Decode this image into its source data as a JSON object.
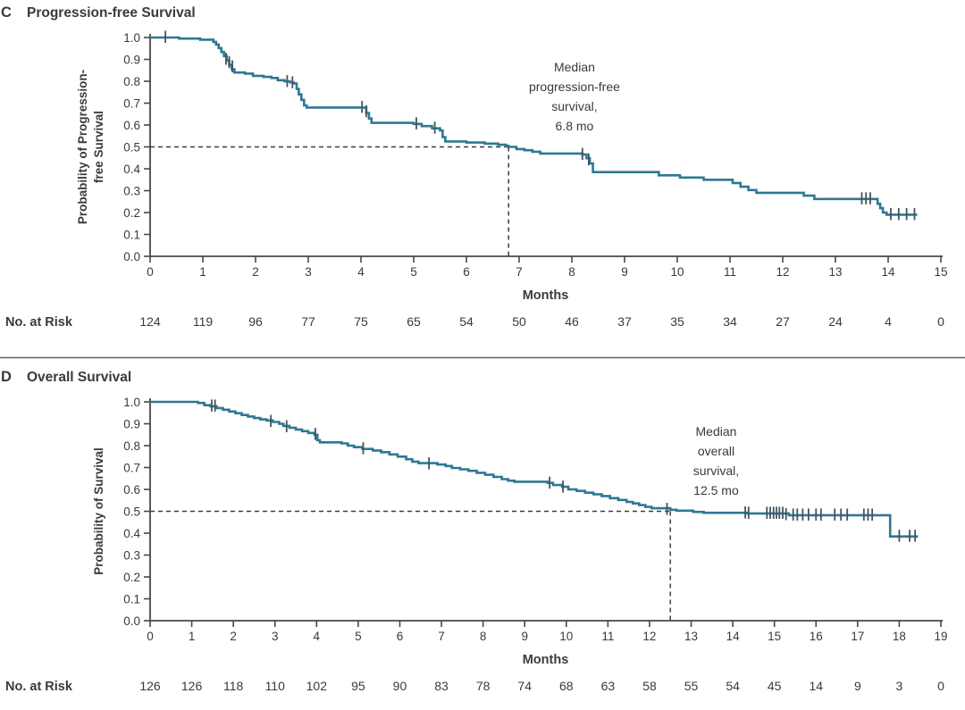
{
  "colors": {
    "curve": "#2e7893",
    "censor": "#44545c",
    "axis": "#474747",
    "text": "#3a3a3a",
    "dashed": "#3d3d3d",
    "divider": "#5f5f5f",
    "background": "#ffffff"
  },
  "chart_data": [
    {
      "type": "line",
      "panel_label": "C",
      "title": "Progression-free Survival",
      "ylabel_lines": [
        "Probability of Progression-",
        "free Survival"
      ],
      "xlabel": "Months",
      "ylim": [
        0,
        1
      ],
      "xlim": [
        0,
        15
      ],
      "yticks": [
        "1.0",
        "0.9",
        "0.8",
        "0.7",
        "0.6",
        "0.5",
        "0.4",
        "0.3",
        "0.2",
        "0.1",
        "0.0"
      ],
      "xticks": [
        "0",
        "1",
        "2",
        "3",
        "4",
        "5",
        "6",
        "7",
        "8",
        "9",
        "10",
        "11",
        "12",
        "13",
        "14",
        "15"
      ],
      "grid": false,
      "median": {
        "x": 6.8,
        "y": 0.5
      },
      "annotation": {
        "lines": [
          "Median",
          "progression-free",
          "survival,",
          "6.8 mo"
        ],
        "anchor_x": 8.05,
        "anchor_y": 0.845,
        "line_step": 0.09
      },
      "steps": [
        [
          0,
          1
        ],
        [
          0.55,
          0.995
        ],
        [
          0.95,
          0.99
        ],
        [
          1.2,
          0.98
        ],
        [
          1.25,
          0.968
        ],
        [
          1.3,
          0.952
        ],
        [
          1.35,
          0.934
        ],
        [
          1.4,
          0.915
        ],
        [
          1.45,
          0.895
        ],
        [
          1.5,
          0.875
        ],
        [
          1.55,
          0.855
        ],
        [
          1.6,
          0.84
        ],
        [
          1.8,
          0.835
        ],
        [
          1.95,
          0.825
        ],
        [
          2.15,
          0.82
        ],
        [
          2.3,
          0.815
        ],
        [
          2.42,
          0.805
        ],
        [
          2.55,
          0.8
        ],
        [
          2.65,
          0.795
        ],
        [
          2.72,
          0.79
        ],
        [
          2.78,
          0.765
        ],
        [
          2.82,
          0.74
        ],
        [
          2.87,
          0.715
        ],
        [
          2.92,
          0.69
        ],
        [
          2.97,
          0.68
        ],
        [
          4.05,
          0.68
        ],
        [
          4.1,
          0.655
        ],
        [
          4.15,
          0.63
        ],
        [
          4.2,
          0.61
        ],
        [
          5.0,
          0.605
        ],
        [
          5.15,
          0.595
        ],
        [
          5.35,
          0.585
        ],
        [
          5.5,
          0.575
        ],
        [
          5.55,
          0.545
        ],
        [
          5.6,
          0.525
        ],
        [
          6.0,
          0.52
        ],
        [
          6.35,
          0.515
        ],
        [
          6.6,
          0.51
        ],
        [
          6.75,
          0.505
        ],
        [
          6.8,
          0.5
        ],
        [
          6.95,
          0.49
        ],
        [
          7.1,
          0.485
        ],
        [
          7.25,
          0.478
        ],
        [
          7.4,
          0.47
        ],
        [
          8.2,
          0.465
        ],
        [
          8.28,
          0.448
        ],
        [
          8.34,
          0.425
        ],
        [
          8.4,
          0.385
        ],
        [
          9.65,
          0.37
        ],
        [
          10.05,
          0.36
        ],
        [
          10.5,
          0.35
        ],
        [
          11.05,
          0.335
        ],
        [
          11.2,
          0.318
        ],
        [
          11.35,
          0.303
        ],
        [
          11.5,
          0.29
        ],
        [
          12.4,
          0.277
        ],
        [
          12.6,
          0.262
        ],
        [
          13.75,
          0.262
        ],
        [
          13.8,
          0.24
        ],
        [
          13.85,
          0.22
        ],
        [
          13.9,
          0.2
        ],
        [
          13.97,
          0.19
        ],
        [
          14.55,
          0.19
        ]
      ],
      "censors": [
        [
          0.29,
          1
        ],
        [
          1.44,
          0.9
        ],
        [
          1.5,
          0.885
        ],
        [
          1.56,
          0.865
        ],
        [
          2.6,
          0.798
        ],
        [
          2.7,
          0.792
        ],
        [
          4.02,
          0.68
        ],
        [
          4.1,
          0.66
        ],
        [
          5.05,
          0.605
        ],
        [
          5.4,
          0.585
        ],
        [
          8.2,
          0.465
        ],
        [
          8.32,
          0.44
        ],
        [
          13.5,
          0.262
        ],
        [
          13.58,
          0.262
        ],
        [
          13.66,
          0.262
        ],
        [
          14.05,
          0.19
        ],
        [
          14.2,
          0.19
        ],
        [
          14.35,
          0.19
        ],
        [
          14.5,
          0.19
        ]
      ],
      "at_risk": {
        "label": "No. at Risk",
        "values": [
          "124",
          "119",
          "96",
          "77",
          "75",
          "65",
          "54",
          "50",
          "46",
          "37",
          "35",
          "34",
          "27",
          "24",
          "4",
          "0"
        ]
      }
    },
    {
      "type": "line",
      "panel_label": "D",
      "title": "Overall Survival",
      "ylabel_lines": [
        "Probability of Survival"
      ],
      "xlabel": "Months",
      "ylim": [
        0,
        1
      ],
      "xlim": [
        0,
        19
      ],
      "yticks": [
        "1.0",
        "0.9",
        "0.8",
        "0.7",
        "0.6",
        "0.5",
        "0.4",
        "0.3",
        "0.2",
        "0.1",
        "0.0"
      ],
      "xticks": [
        "0",
        "1",
        "2",
        "3",
        "4",
        "5",
        "6",
        "7",
        "8",
        "9",
        "10",
        "11",
        "12",
        "13",
        "14",
        "15",
        "16",
        "17",
        "18",
        "19"
      ],
      "grid": false,
      "median": {
        "x": 12.5,
        "y": 0.5
      },
      "annotation": {
        "lines": [
          "Median",
          "overall",
          "survival,",
          "12.5 mo"
        ],
        "anchor_x": 13.6,
        "anchor_y": 0.845,
        "line_step": 0.09
      },
      "steps": [
        [
          0,
          1
        ],
        [
          1.05,
          1
        ],
        [
          1.15,
          0.995
        ],
        [
          1.3,
          0.985
        ],
        [
          1.45,
          0.98
        ],
        [
          1.6,
          0.972
        ],
        [
          1.75,
          0.964
        ],
        [
          1.9,
          0.956
        ],
        [
          2.05,
          0.948
        ],
        [
          2.2,
          0.94
        ],
        [
          2.35,
          0.933
        ],
        [
          2.5,
          0.926
        ],
        [
          2.65,
          0.92
        ],
        [
          2.8,
          0.915
        ],
        [
          2.95,
          0.908
        ],
        [
          3.1,
          0.9
        ],
        [
          3.2,
          0.89
        ],
        [
          3.35,
          0.882
        ],
        [
          3.5,
          0.874
        ],
        [
          3.65,
          0.866
        ],
        [
          3.8,
          0.858
        ],
        [
          3.95,
          0.85
        ],
        [
          4.02,
          0.825
        ],
        [
          4.08,
          0.815
        ],
        [
          4.6,
          0.81
        ],
        [
          4.75,
          0.8
        ],
        [
          4.9,
          0.793
        ],
        [
          5.1,
          0.785
        ],
        [
          5.35,
          0.778
        ],
        [
          5.55,
          0.77
        ],
        [
          5.75,
          0.76
        ],
        [
          5.95,
          0.75
        ],
        [
          6.15,
          0.738
        ],
        [
          6.3,
          0.727
        ],
        [
          6.45,
          0.72
        ],
        [
          6.9,
          0.714
        ],
        [
          7.1,
          0.707
        ],
        [
          7.25,
          0.698
        ],
        [
          7.45,
          0.692
        ],
        [
          7.65,
          0.685
        ],
        [
          7.85,
          0.676
        ],
        [
          8.05,
          0.667
        ],
        [
          8.25,
          0.657
        ],
        [
          8.45,
          0.647
        ],
        [
          8.6,
          0.64
        ],
        [
          8.75,
          0.635
        ],
        [
          9.55,
          0.63
        ],
        [
          9.68,
          0.62
        ],
        [
          9.9,
          0.612
        ],
        [
          10.05,
          0.6
        ],
        [
          10.25,
          0.593
        ],
        [
          10.45,
          0.585
        ],
        [
          10.65,
          0.578
        ],
        [
          10.85,
          0.57
        ],
        [
          11.05,
          0.56
        ],
        [
          11.25,
          0.552
        ],
        [
          11.45,
          0.543
        ],
        [
          11.6,
          0.536
        ],
        [
          11.75,
          0.528
        ],
        [
          11.9,
          0.52
        ],
        [
          12.05,
          0.514
        ],
        [
          12.5,
          0.507
        ],
        [
          12.65,
          0.503
        ],
        [
          13.05,
          0.497
        ],
        [
          13.3,
          0.493
        ],
        [
          14.35,
          0.49
        ],
        [
          15.35,
          0.482
        ],
        [
          17.72,
          0.482
        ],
        [
          17.78,
          0.385
        ],
        [
          18.45,
          0.385
        ]
      ],
      "censors": [
        [
          1.48,
          0.98
        ],
        [
          1.56,
          0.98
        ],
        [
          2.9,
          0.91
        ],
        [
          3.28,
          0.886
        ],
        [
          3.97,
          0.85
        ],
        [
          5.12,
          0.785
        ],
        [
          6.7,
          0.716
        ],
        [
          9.6,
          0.628
        ],
        [
          9.92,
          0.61
        ],
        [
          12.42,
          0.508
        ],
        [
          14.3,
          0.492
        ],
        [
          14.38,
          0.49
        ],
        [
          14.82,
          0.49
        ],
        [
          14.9,
          0.49
        ],
        [
          14.98,
          0.49
        ],
        [
          15.05,
          0.49
        ],
        [
          15.12,
          0.49
        ],
        [
          15.2,
          0.49
        ],
        [
          15.28,
          0.484
        ],
        [
          15.45,
          0.482
        ],
        [
          15.55,
          0.482
        ],
        [
          15.68,
          0.482
        ],
        [
          15.82,
          0.482
        ],
        [
          16.0,
          0.482
        ],
        [
          16.12,
          0.482
        ],
        [
          16.45,
          0.482
        ],
        [
          16.6,
          0.482
        ],
        [
          16.75,
          0.482
        ],
        [
          17.15,
          0.482
        ],
        [
          17.25,
          0.482
        ],
        [
          17.35,
          0.482
        ],
        [
          18.0,
          0.385
        ],
        [
          18.25,
          0.385
        ],
        [
          18.38,
          0.385
        ]
      ],
      "at_risk": {
        "label": "No. at Risk",
        "values": [
          "126",
          "126",
          "118",
          "110",
          "102",
          "95",
          "90",
          "83",
          "78",
          "74",
          "68",
          "63",
          "58",
          "55",
          "54",
          "45",
          "14",
          "9",
          "3",
          "0"
        ]
      }
    }
  ]
}
